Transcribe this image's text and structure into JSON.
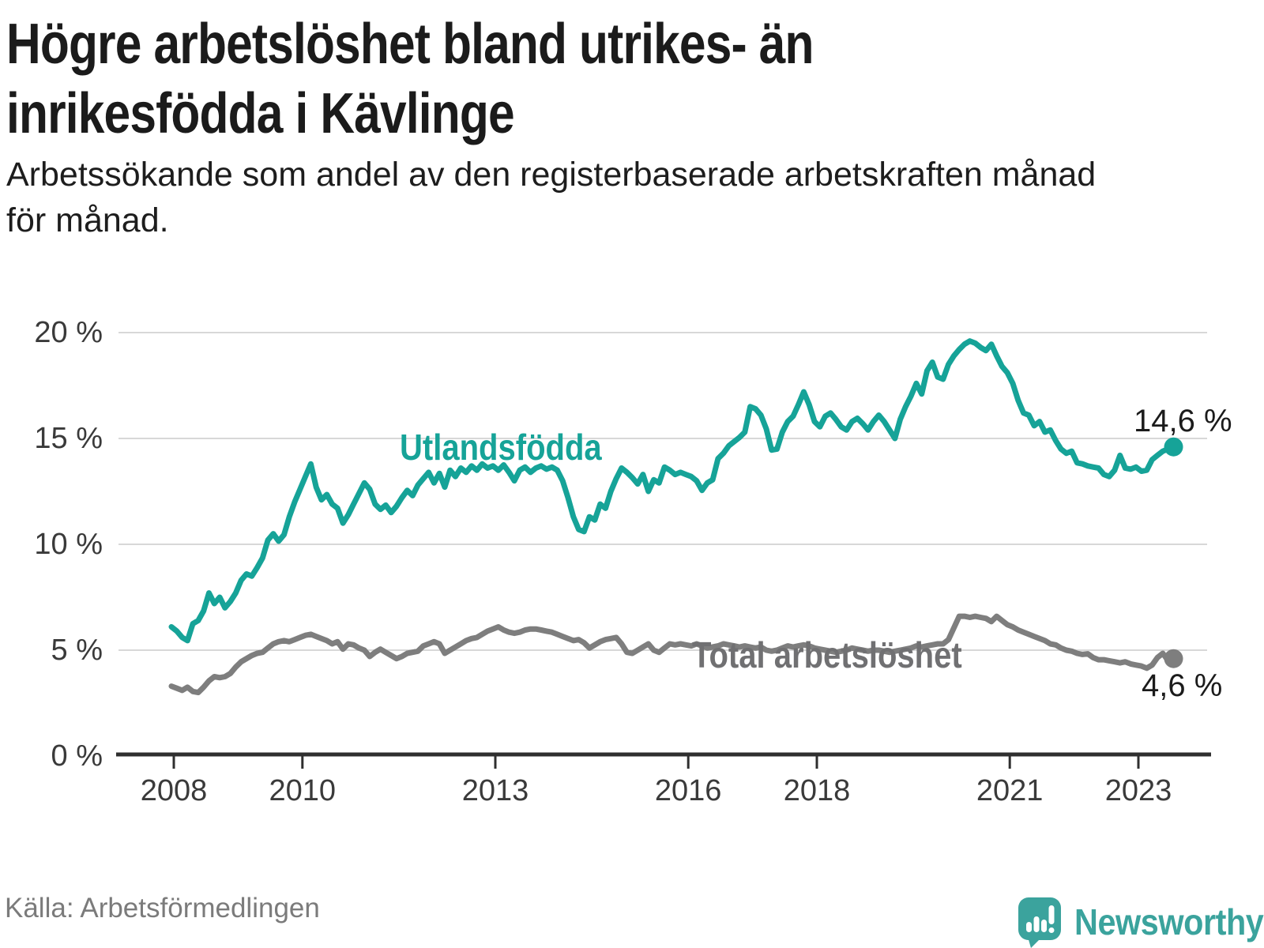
{
  "header": {
    "title_line1": "Högre arbetslöshet bland utrikes- än",
    "title_line2": "inrikesfödda i Kävlinge",
    "subtitle_line1": "Arbetssökande som andel av den registerbaserade arbetskraften månad",
    "subtitle_line2": "för månad."
  },
  "chart": {
    "y_ticks": [
      {
        "label": "20 %",
        "value": 20
      },
      {
        "label": "15 %",
        "value": 15
      },
      {
        "label": "10 %",
        "value": 10
      },
      {
        "label": "5 %",
        "value": 5
      },
      {
        "label": "0 %",
        "value": 0
      }
    ],
    "x_ticks": [
      {
        "label": "2008",
        "year": 2008
      },
      {
        "label": "2010",
        "year": 2010
      },
      {
        "label": "2013",
        "year": 2013
      },
      {
        "label": "2016",
        "year": 2016
      },
      {
        "label": "2018",
        "year": 2018
      },
      {
        "label": "2021",
        "year": 2021
      },
      {
        "label": "2023",
        "year": 2023
      }
    ],
    "series_labels": {
      "teal": "Utlandsfödda",
      "gray": "Total arbetslöshet"
    },
    "end_labels": {
      "teal": "14,6 %",
      "gray": "4,6 %"
    },
    "colors": {
      "teal": "#16a398",
      "gray": "#7e7e7e",
      "grid": "#d8d8d8",
      "axis": "#2f2f2f",
      "axis_text": "#3a3a3a",
      "end_label_text": "#1b1b1b",
      "brand_teal": "#3ba39d"
    }
  },
  "chart_data": {
    "type": "line",
    "title": "Högre arbetslöshet bland utrikes- än inrikesfödda i Kävlinge",
    "xlabel": "",
    "ylabel": "",
    "x_start_year": 2008,
    "x_step_months": 1,
    "x_end": "2023-08",
    "ylim": [
      0,
      20
    ],
    "x_axis_tick_years": [
      2008,
      2010,
      2013,
      2016,
      2018,
      2021,
      2023
    ],
    "grid": "horizontal",
    "series": [
      {
        "name": "Utlandsfödda",
        "color": "#16a398",
        "end_value_label": "14,6 %",
        "values": [
          6.1,
          5.9,
          5.6,
          5.45,
          6.25,
          6.4,
          6.85,
          7.7,
          7.2,
          7.5,
          7.0,
          7.3,
          7.7,
          8.3,
          8.6,
          8.5,
          8.9,
          9.35,
          10.2,
          10.5,
          10.15,
          10.45,
          11.3,
          12.0,
          12.6,
          13.2,
          13.8,
          12.7,
          12.1,
          12.35,
          11.9,
          11.7,
          11.0,
          11.4,
          11.9,
          12.4,
          12.9,
          12.6,
          11.9,
          11.65,
          11.85,
          11.5,
          11.8,
          12.2,
          12.55,
          12.3,
          12.8,
          13.1,
          13.4,
          12.9,
          13.35,
          12.7,
          13.5,
          13.2,
          13.6,
          13.4,
          13.7,
          13.5,
          13.8,
          13.6,
          13.7,
          13.5,
          13.75,
          13.4,
          13.0,
          13.5,
          13.65,
          13.4,
          13.6,
          13.7,
          13.55,
          13.65,
          13.5,
          13.0,
          12.2,
          11.3,
          10.7,
          10.6,
          11.3,
          11.15,
          11.9,
          11.7,
          12.5,
          13.1,
          13.6,
          13.4,
          13.15,
          12.85,
          13.3,
          12.5,
          13.05,
          12.9,
          13.65,
          13.5,
          13.3,
          13.4,
          13.3,
          13.2,
          13.0,
          12.55,
          12.9,
          13.05,
          14.05,
          14.3,
          14.65,
          14.85,
          15.05,
          15.3,
          16.5,
          16.4,
          16.1,
          15.45,
          14.45,
          14.5,
          15.3,
          15.8,
          16.05,
          16.6,
          17.2,
          16.6,
          15.8,
          15.55,
          16.05,
          16.2,
          15.9,
          15.55,
          15.4,
          15.8,
          15.95,
          15.7,
          15.4,
          15.8,
          16.1,
          15.8,
          15.4,
          15.0,
          15.9,
          16.5,
          17.0,
          17.6,
          17.1,
          18.2,
          18.6,
          17.9,
          17.8,
          18.5,
          18.9,
          19.2,
          19.45,
          19.6,
          19.5,
          19.3,
          19.15,
          19.45,
          18.9,
          18.4,
          18.1,
          17.6,
          16.8,
          16.2,
          16.1,
          15.6,
          15.8,
          15.3,
          15.4,
          14.9,
          14.5,
          14.3,
          14.4,
          13.85,
          13.8,
          13.7,
          13.65,
          13.6,
          13.3,
          13.2,
          13.5,
          14.2,
          13.6,
          13.55,
          13.65,
          13.45,
          13.5,
          14.0,
          14.2,
          14.4,
          14.5,
          14.6
        ]
      },
      {
        "name": "Total arbetslöshet",
        "color": "#7e7e7e",
        "end_value_label": "4,6 %",
        "values": [
          3.3,
          3.2,
          3.1,
          3.25,
          3.05,
          3.0,
          3.25,
          3.55,
          3.75,
          3.7,
          3.75,
          3.9,
          4.2,
          4.45,
          4.6,
          4.75,
          4.85,
          4.9,
          5.1,
          5.3,
          5.4,
          5.45,
          5.4,
          5.5,
          5.6,
          5.7,
          5.75,
          5.65,
          5.55,
          5.45,
          5.3,
          5.4,
          5.05,
          5.3,
          5.25,
          5.1,
          5.0,
          4.7,
          4.9,
          5.05,
          4.9,
          4.75,
          4.6,
          4.7,
          4.85,
          4.9,
          4.95,
          5.2,
          5.3,
          5.4,
          5.3,
          4.85,
          5.0,
          5.15,
          5.3,
          5.45,
          5.55,
          5.6,
          5.75,
          5.9,
          6.0,
          6.1,
          5.95,
          5.85,
          5.8,
          5.85,
          5.95,
          6.0,
          6.0,
          5.95,
          5.9,
          5.85,
          5.75,
          5.65,
          5.55,
          5.45,
          5.5,
          5.35,
          5.1,
          5.25,
          5.4,
          5.5,
          5.55,
          5.6,
          5.3,
          4.9,
          4.85,
          5.0,
          5.15,
          5.3,
          5.0,
          4.9,
          5.1,
          5.3,
          5.25,
          5.3,
          5.25,
          5.2,
          5.3,
          5.2,
          5.1,
          5.15,
          5.2,
          5.3,
          5.25,
          5.2,
          5.15,
          5.2,
          5.15,
          5.1,
          5.15,
          5.0,
          4.95,
          5.0,
          5.1,
          5.2,
          5.15,
          5.2,
          5.25,
          5.2,
          5.1,
          5.05,
          5.0,
          4.95,
          4.9,
          4.95,
          5.0,
          5.1,
          5.05,
          5.0,
          4.95,
          5.0,
          5.0,
          4.95,
          4.9,
          4.95,
          5.0,
          5.05,
          5.1,
          5.2,
          5.15,
          5.2,
          5.25,
          5.3,
          5.3,
          5.5,
          6.05,
          6.6,
          6.6,
          6.55,
          6.6,
          6.55,
          6.5,
          6.35,
          6.6,
          6.4,
          6.2,
          6.1,
          5.95,
          5.85,
          5.75,
          5.65,
          5.55,
          5.45,
          5.3,
          5.25,
          5.1,
          5.0,
          4.95,
          4.85,
          4.8,
          4.83,
          4.65,
          4.55,
          4.55,
          4.5,
          4.45,
          4.4,
          4.45,
          4.35,
          4.3,
          4.25,
          4.15,
          4.3,
          4.65,
          4.85,
          4.5,
          4.6
        ]
      }
    ],
    "legend_position": "inline-labels"
  },
  "footer": {
    "source": "Källa: Arbetsförmedlingen",
    "brand": "Newsworthy"
  }
}
